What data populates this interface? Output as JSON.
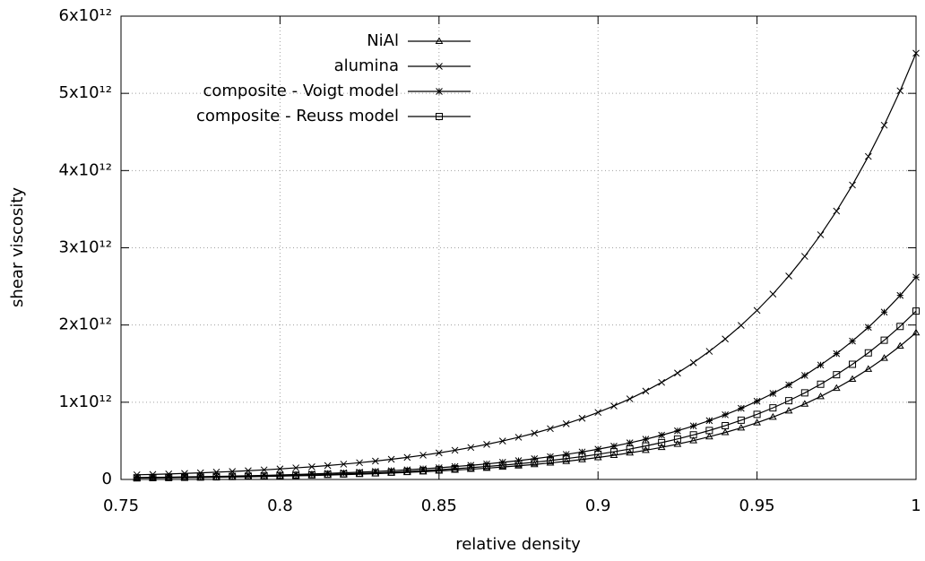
{
  "chart_data": {
    "type": "line",
    "xlabel": "relative density",
    "ylabel": "shear viscosity",
    "x": [
      0.755,
      0.76,
      0.765,
      0.77,
      0.775,
      0.78,
      0.785,
      0.79,
      0.795,
      0.8,
      0.805,
      0.81,
      0.815,
      0.82,
      0.825,
      0.83,
      0.835,
      0.84,
      0.845,
      0.85,
      0.855,
      0.86,
      0.865,
      0.87,
      0.875,
      0.88,
      0.885,
      0.89,
      0.895,
      0.9,
      0.905,
      0.91,
      0.915,
      0.92,
      0.925,
      0.93,
      0.935,
      0.94,
      0.945,
      0.95,
      0.955,
      0.96,
      0.965,
      0.97,
      0.975,
      0.98,
      0.985,
      0.99,
      0.995,
      1
    ],
    "series": [
      {
        "name": "NiAl",
        "color": "#000000",
        "marker": "triangle",
        "values": [
          18000000000.0,
          20000000000.0,
          22000000000.0,
          24000000000.0,
          26000000000.0,
          29000000000.0,
          32000000000.0,
          35000000000.0,
          39000000000.0,
          43000000000.0,
          47000000000.0,
          51000000000.0,
          56000000000.0,
          62000000000.0,
          68000000000.0,
          75000000000.0,
          83000000000.0,
          91000000000.0,
          100000000000.0,
          110000000000.0,
          121000000000.0,
          133000000000.0,
          146000000000.0,
          161000000000.0,
          177000000000.0,
          194000000000.0,
          214000000000.0,
          235000000000.0,
          258000000000.0,
          284000000000.0,
          313000000000.0,
          344000000000.0,
          378000000000.0,
          416000000000.0,
          457000000000.0,
          503000000000.0,
          553000000000.0,
          608000000000.0,
          668000000000.0,
          735000000000.0,
          808000000000.0,
          889000000000.0,
          977000000000.0,
          1074000000000.0,
          1182000000000.0,
          1299000000000.0,
          1429000000000.0,
          1571000000000.0,
          1728000000000.0,
          1900000000000.0
        ]
      },
      {
        "name": "alumina",
        "color": "#000000",
        "marker": "cross",
        "values": [
          60000000000.0,
          65000000000.0,
          71000000000.0,
          78000000000.0,
          86000000000.0,
          94000000000.0,
          103000000000.0,
          113000000000.0,
          124000000000.0,
          136000000000.0,
          150000000000.0,
          164000000000.0,
          180000000000.0,
          198000000000.0,
          217000000000.0,
          238000000000.0,
          261000000000.0,
          286000000000.0,
          314000000000.0,
          344000000000.0,
          378000000000.0,
          414000000000.0,
          454000000000.0,
          498000000000.0,
          546000000000.0,
          599000000000.0,
          658000000000.0,
          721000000000.0,
          792000000000.0,
          868000000000.0,
          952000000000.0,
          1044000000000.0,
          1145000000000.0,
          1257000000000.0,
          1378000000000.0,
          1512000000000.0,
          1659000000000.0,
          1819000000000.0,
          1995000000000.0,
          2189000000000.0,
          2401000000000.0,
          2634000000000.0,
          2889000000000.0,
          3169000000000.0,
          3476000000000.0,
          3813000000000.0,
          4183000000000.0,
          4588000000000.0,
          5033000000000.0,
          5520000000000.0
        ]
      },
      {
        "name": "composite - Voigt model",
        "color": "#000000",
        "marker": "star",
        "values": [
          25000000000.0,
          28000000000.0,
          30000000000.0,
          33000000000.0,
          36000000000.0,
          40000000000.0,
          44000000000.0,
          48000000000.0,
          53000000000.0,
          59000000000.0,
          64000000000.0,
          71000000000.0,
          78000000000.0,
          86000000000.0,
          94000000000.0,
          104000000000.0,
          114000000000.0,
          125000000000.0,
          138000000000.0,
          151000000000.0,
          167000000000.0,
          183000000000.0,
          201000000000.0,
          222000000000.0,
          244000000000.0,
          268000000000.0,
          295000000000.0,
          324000000000.0,
          356000000000.0,
          392000000000.0,
          431000000000.0,
          474000000000.0,
          521000000000.0,
          573000000000.0,
          630000000000.0,
          693000000000.0,
          762000000000.0,
          838000000000.0,
          921000000000.0,
          1013000000000.0,
          1114000000000.0,
          1225000000000.0,
          1347000000000.0,
          1482000000000.0,
          1629000000000.0,
          1792000000000.0,
          1970000000000.0,
          2167000000000.0,
          2383000000000.0,
          2620000000000.0
        ]
      },
      {
        "name": "composite - Reuss model",
        "color": "#000000",
        "marker": "square",
        "values": [
          21000000000.0,
          23000000000.0,
          25000000000.0,
          27000000000.0,
          30000000000.0,
          33000000000.0,
          37000000000.0,
          40000000000.0,
          44000000000.0,
          49000000000.0,
          54000000000.0,
          59000000000.0,
          65000000000.0,
          71000000000.0,
          78000000000.0,
          86000000000.0,
          95000000000.0,
          104000000000.0,
          115000000000.0,
          126000000000.0,
          139000000000.0,
          153000000000.0,
          168000000000.0,
          184000000000.0,
          203000000000.0,
          223000000000.0,
          245000000000.0,
          270000000000.0,
          296000000000.0,
          326000000000.0,
          359000000000.0,
          394000000000.0,
          434000000000.0,
          477000000000.0,
          524000000000.0,
          577000000000.0,
          634000000000.0,
          697000000000.0,
          767000000000.0,
          843000000000.0,
          927000000000.0,
          1020000000000.0,
          1121000000000.0,
          1233000000000.0,
          1356000000000.0,
          1491000000000.0,
          1639000000000.0,
          1803000000000.0,
          1982000000000.0,
          2180000000000.0
        ]
      }
    ],
    "xlim": [
      0.75,
      1
    ],
    "xticks": [
      0.75,
      0.8,
      0.85,
      0.9,
      0.95,
      1
    ],
    "ylim": [
      0,
      6000000000000.0
    ],
    "yticks": [
      0,
      {
        "value": 1000000000000.0,
        "label": "1x10¹²"
      },
      {
        "value": 2000000000000.0,
        "label": "2x10¹²"
      },
      {
        "value": 3000000000000.0,
        "label": "3x10¹²"
      },
      {
        "value": 4000000000000.0,
        "label": "4x10¹²"
      },
      {
        "value": 5000000000000.0,
        "label": "5x10¹²"
      },
      {
        "value": 6000000000000.0,
        "label": "6x10¹²"
      }
    ],
    "grid": true,
    "legend": "top"
  }
}
